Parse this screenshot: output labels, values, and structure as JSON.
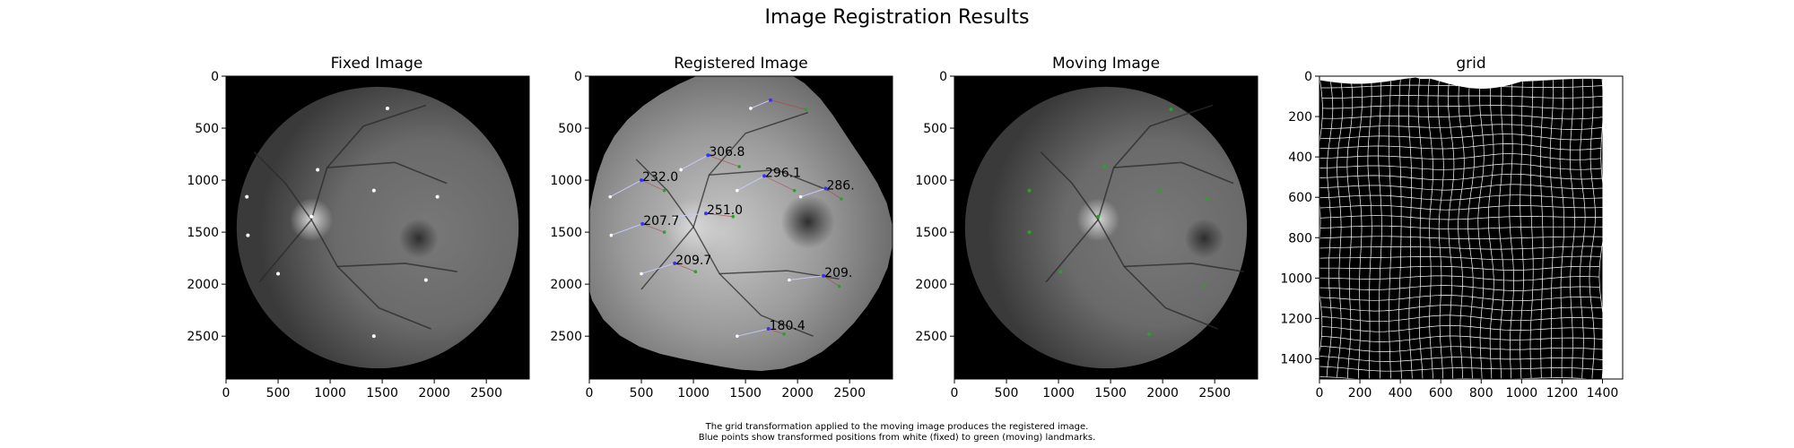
{
  "figure": {
    "title": "Image Registration Results",
    "caption_lines": [
      "The grid transformation applied to the moving image produces the registered image.",
      "Blue points show transformed positions from white (fixed) to green (moving) landmarks."
    ]
  },
  "colors": {
    "background_outside": "#000000",
    "retina_edge": "#3c3c3c",
    "retina_center": "#6e6e6e",
    "registered_center": "#9a9a9a",
    "fixed_points": "#ffffff",
    "moving_points": "#2ca02c",
    "transformed_points": "#3333ff",
    "error_lines": "#c8c8ff",
    "grid_lines": "#ffffff"
  },
  "chart_data": [
    {
      "type": "scatter",
      "title": "Fixed Image",
      "xlim": [
        0,
        2912
      ],
      "ylim": [
        2912,
        0
      ],
      "xticks": [
        0,
        500,
        1000,
        1500,
        2000,
        2500
      ],
      "yticks": [
        0,
        500,
        1000,
        1500,
        2000,
        2500
      ],
      "fixed_landmarks": [
        {
          "x": 1550,
          "y": 310
        },
        {
          "x": 880,
          "y": 900
        },
        {
          "x": 1420,
          "y": 1100
        },
        {
          "x": 200,
          "y": 1160
        },
        {
          "x": 2030,
          "y": 1160
        },
        {
          "x": 820,
          "y": 1350
        },
        {
          "x": 210,
          "y": 1530
        },
        {
          "x": 500,
          "y": 1900
        },
        {
          "x": 1920,
          "y": 1960
        },
        {
          "x": 1420,
          "y": 2500
        }
      ]
    },
    {
      "type": "scatter",
      "title": "Registered Image",
      "xlim": [
        0,
        2912
      ],
      "ylim": [
        2912,
        0
      ],
      "xticks": [
        0,
        500,
        1000,
        1500,
        2000,
        2500
      ],
      "yticks": [
        0,
        500,
        1000,
        1500,
        2000,
        2500
      ],
      "annotations": [
        {
          "label": "306.8",
          "fixed": [
            880,
            900
          ],
          "moving": [
            1440,
            870
          ],
          "transformed": [
            1140,
            760
          ]
        },
        {
          "label": "232.0",
          "fixed": [
            200,
            1160
          ],
          "moving": [
            720,
            1100
          ],
          "transformed": [
            500,
            1000
          ]
        },
        {
          "label": "296.1",
          "fixed": [
            1420,
            1100
          ],
          "moving": [
            1970,
            1100
          ],
          "transformed": [
            1680,
            960
          ]
        },
        {
          "label": "286.",
          "fixed": [
            2030,
            1160
          ],
          "moving": [
            2420,
            1180
          ],
          "transformed": [
            2270,
            1080
          ]
        },
        {
          "label": "251.0",
          "fixed": [
            820,
            1350
          ],
          "moving": [
            1380,
            1350
          ],
          "transformed": [
            1120,
            1320
          ]
        },
        {
          "label": "207.7",
          "fixed": [
            210,
            1530
          ],
          "moving": [
            720,
            1500
          ],
          "transformed": [
            510,
            1420
          ]
        },
        {
          "label": "209.7",
          "fixed": [
            500,
            1900
          ],
          "moving": [
            1020,
            1880
          ],
          "transformed": [
            820,
            1800
          ]
        },
        {
          "label": "209.",
          "fixed": [
            1920,
            1960
          ],
          "moving": [
            2400,
            2020
          ],
          "transformed": [
            2250,
            1920
          ]
        },
        {
          "label": "180.4",
          "fixed": [
            1420,
            2500
          ],
          "moving": [
            1870,
            2480
          ],
          "transformed": [
            1720,
            2430
          ]
        }
      ],
      "unlabeled_landmarks": [
        {
          "fixed": [
            1550,
            310
          ],
          "moving": [
            2080,
            320
          ],
          "transformed": [
            1740,
            230
          ]
        }
      ]
    },
    {
      "type": "scatter",
      "title": "Moving Image",
      "xlim": [
        0,
        2912
      ],
      "ylim": [
        2912,
        0
      ],
      "xticks": [
        0,
        500,
        1000,
        1500,
        2000,
        2500
      ],
      "yticks": [
        0,
        500,
        1000,
        1500,
        2000,
        2500
      ],
      "moving_landmarks": [
        {
          "x": 2080,
          "y": 320
        },
        {
          "x": 1440,
          "y": 870
        },
        {
          "x": 720,
          "y": 1100
        },
        {
          "x": 1970,
          "y": 1100
        },
        {
          "x": 2420,
          "y": 1180
        },
        {
          "x": 1380,
          "y": 1350
        },
        {
          "x": 720,
          "y": 1500
        },
        {
          "x": 1020,
          "y": 1880
        },
        {
          "x": 2400,
          "y": 2020
        },
        {
          "x": 1870,
          "y": 2480
        }
      ]
    },
    {
      "type": "heatmap",
      "title": "grid",
      "xlim": [
        0,
        1500
      ],
      "ylim": [
        1500,
        0
      ],
      "xticks": [
        0,
        200,
        400,
        600,
        800,
        1000,
        1200,
        1400
      ],
      "yticks": [
        0,
        200,
        400,
        600,
        800,
        1000,
        1200,
        1400
      ],
      "grid_extent": {
        "x": [
          0,
          1400
        ],
        "y": [
          0,
          1500
        ]
      },
      "grid_spacing": 50
    }
  ]
}
